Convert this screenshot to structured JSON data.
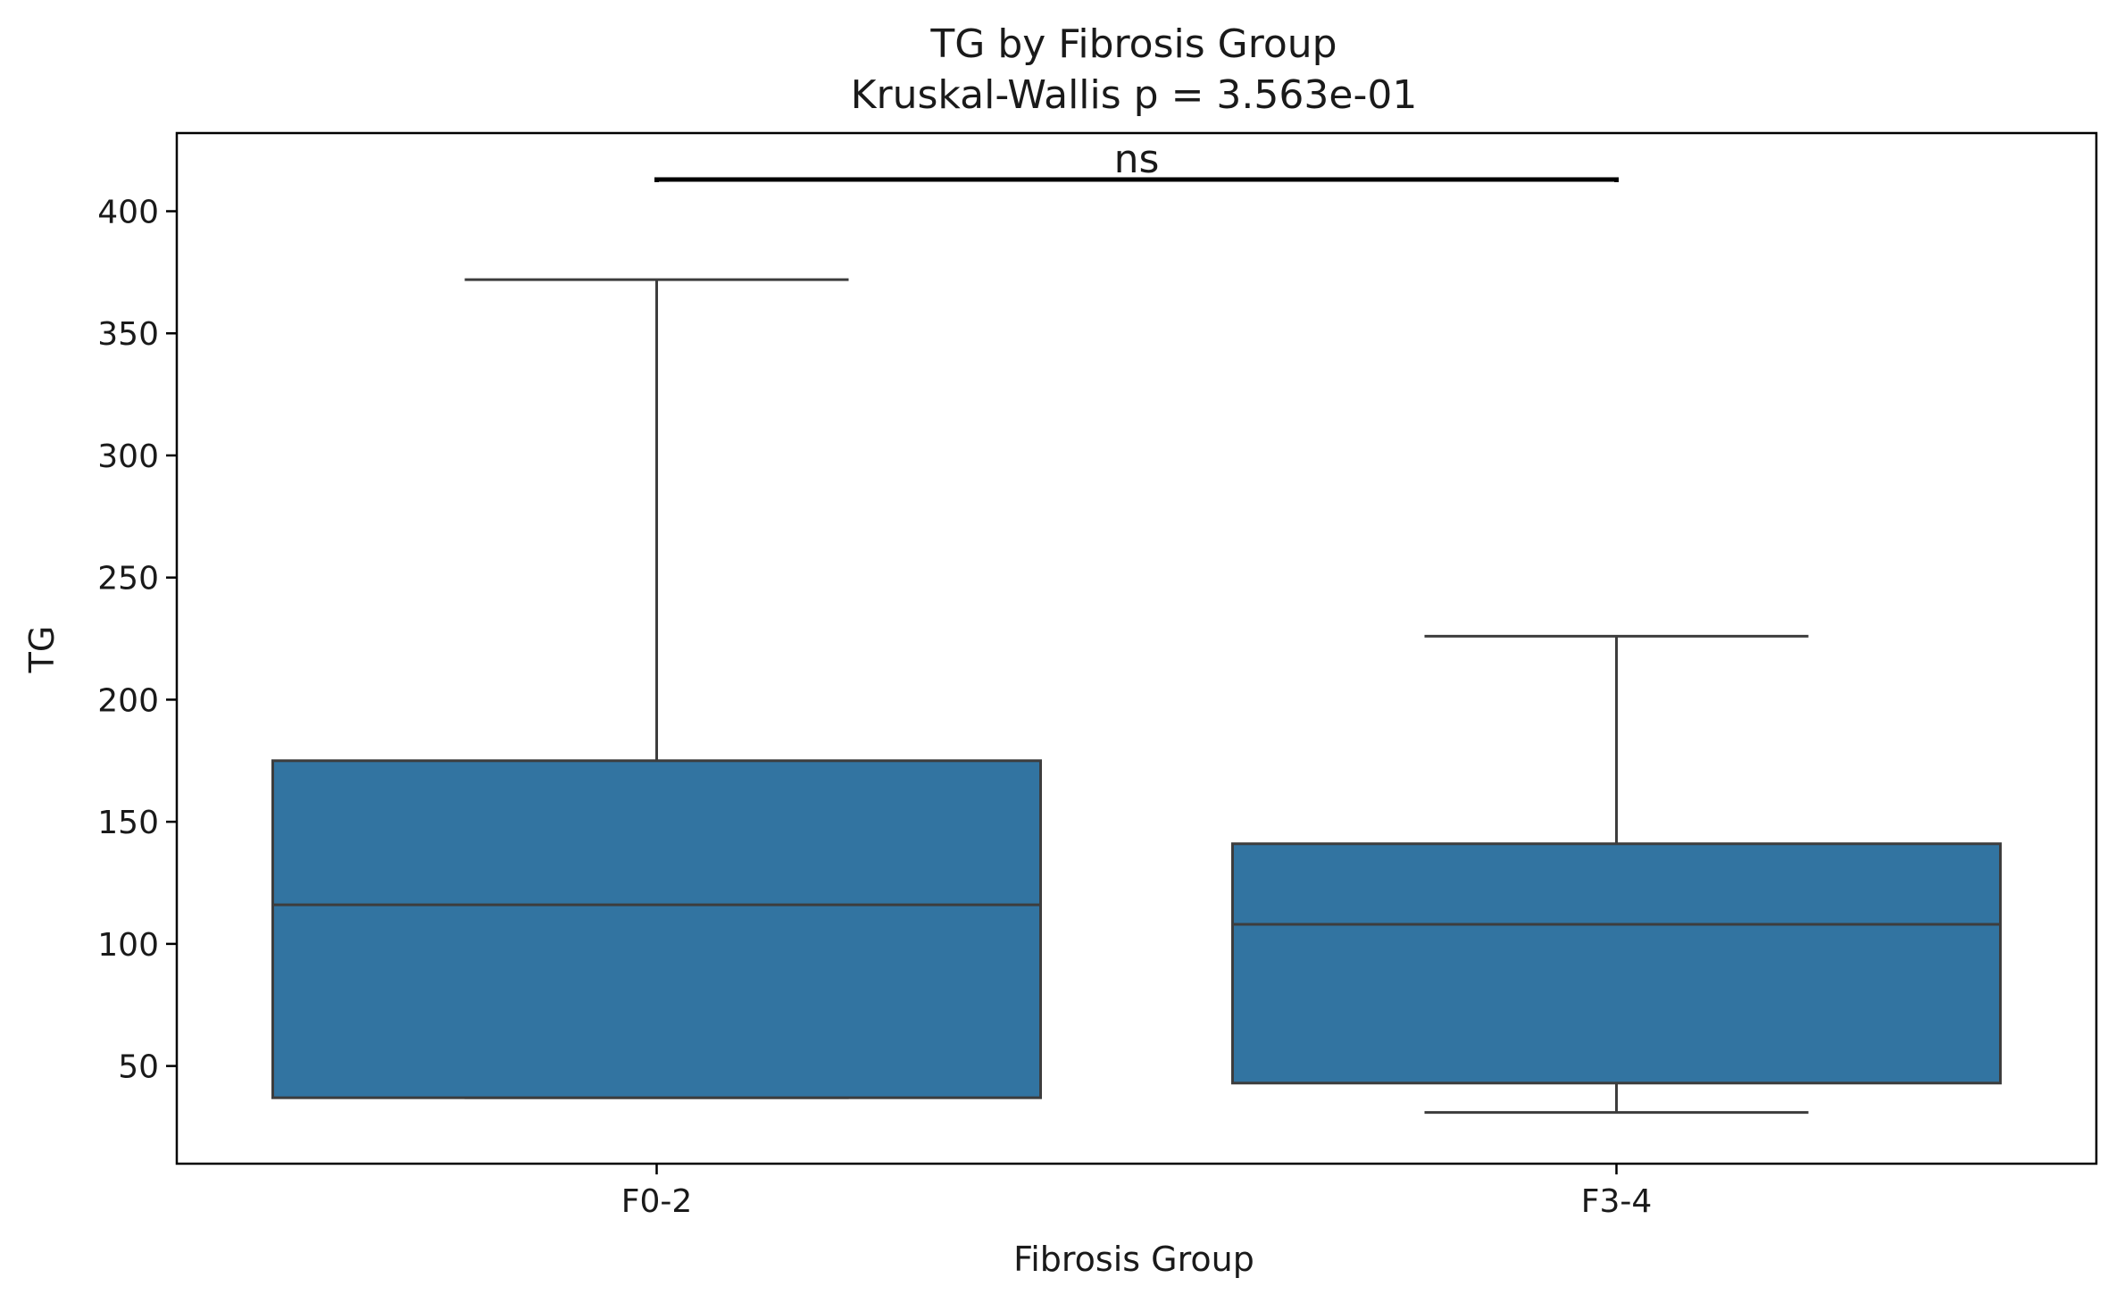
{
  "chart_data": {
    "type": "box",
    "title": "TG by Fibrosis Group",
    "subtitle": "Kruskal-Wallis p = 3.563e-01",
    "xlabel": "Fibrosis Group",
    "ylabel": "TG",
    "ylim": [
      10,
      432
    ],
    "yticks": [
      50,
      100,
      150,
      200,
      250,
      300,
      350,
      400
    ],
    "categories": [
      "F0-2",
      "F3-4"
    ],
    "boxes": [
      {
        "category": "F0-2",
        "whisker_low": 37,
        "q1": 37,
        "median": 116,
        "q3": 175,
        "whisker_high": 372
      },
      {
        "category": "F3-4",
        "whisker_low": 31,
        "q1": 43,
        "median": 108,
        "q3": 141,
        "whisker_high": 226
      }
    ],
    "annotation": {
      "text": "ns",
      "y": 413,
      "from": "F0-2",
      "to": "F3-4"
    },
    "colors": {
      "box_fill": "#3274a1",
      "box_edge": "#3d3d3d",
      "axis": "#000000"
    }
  }
}
